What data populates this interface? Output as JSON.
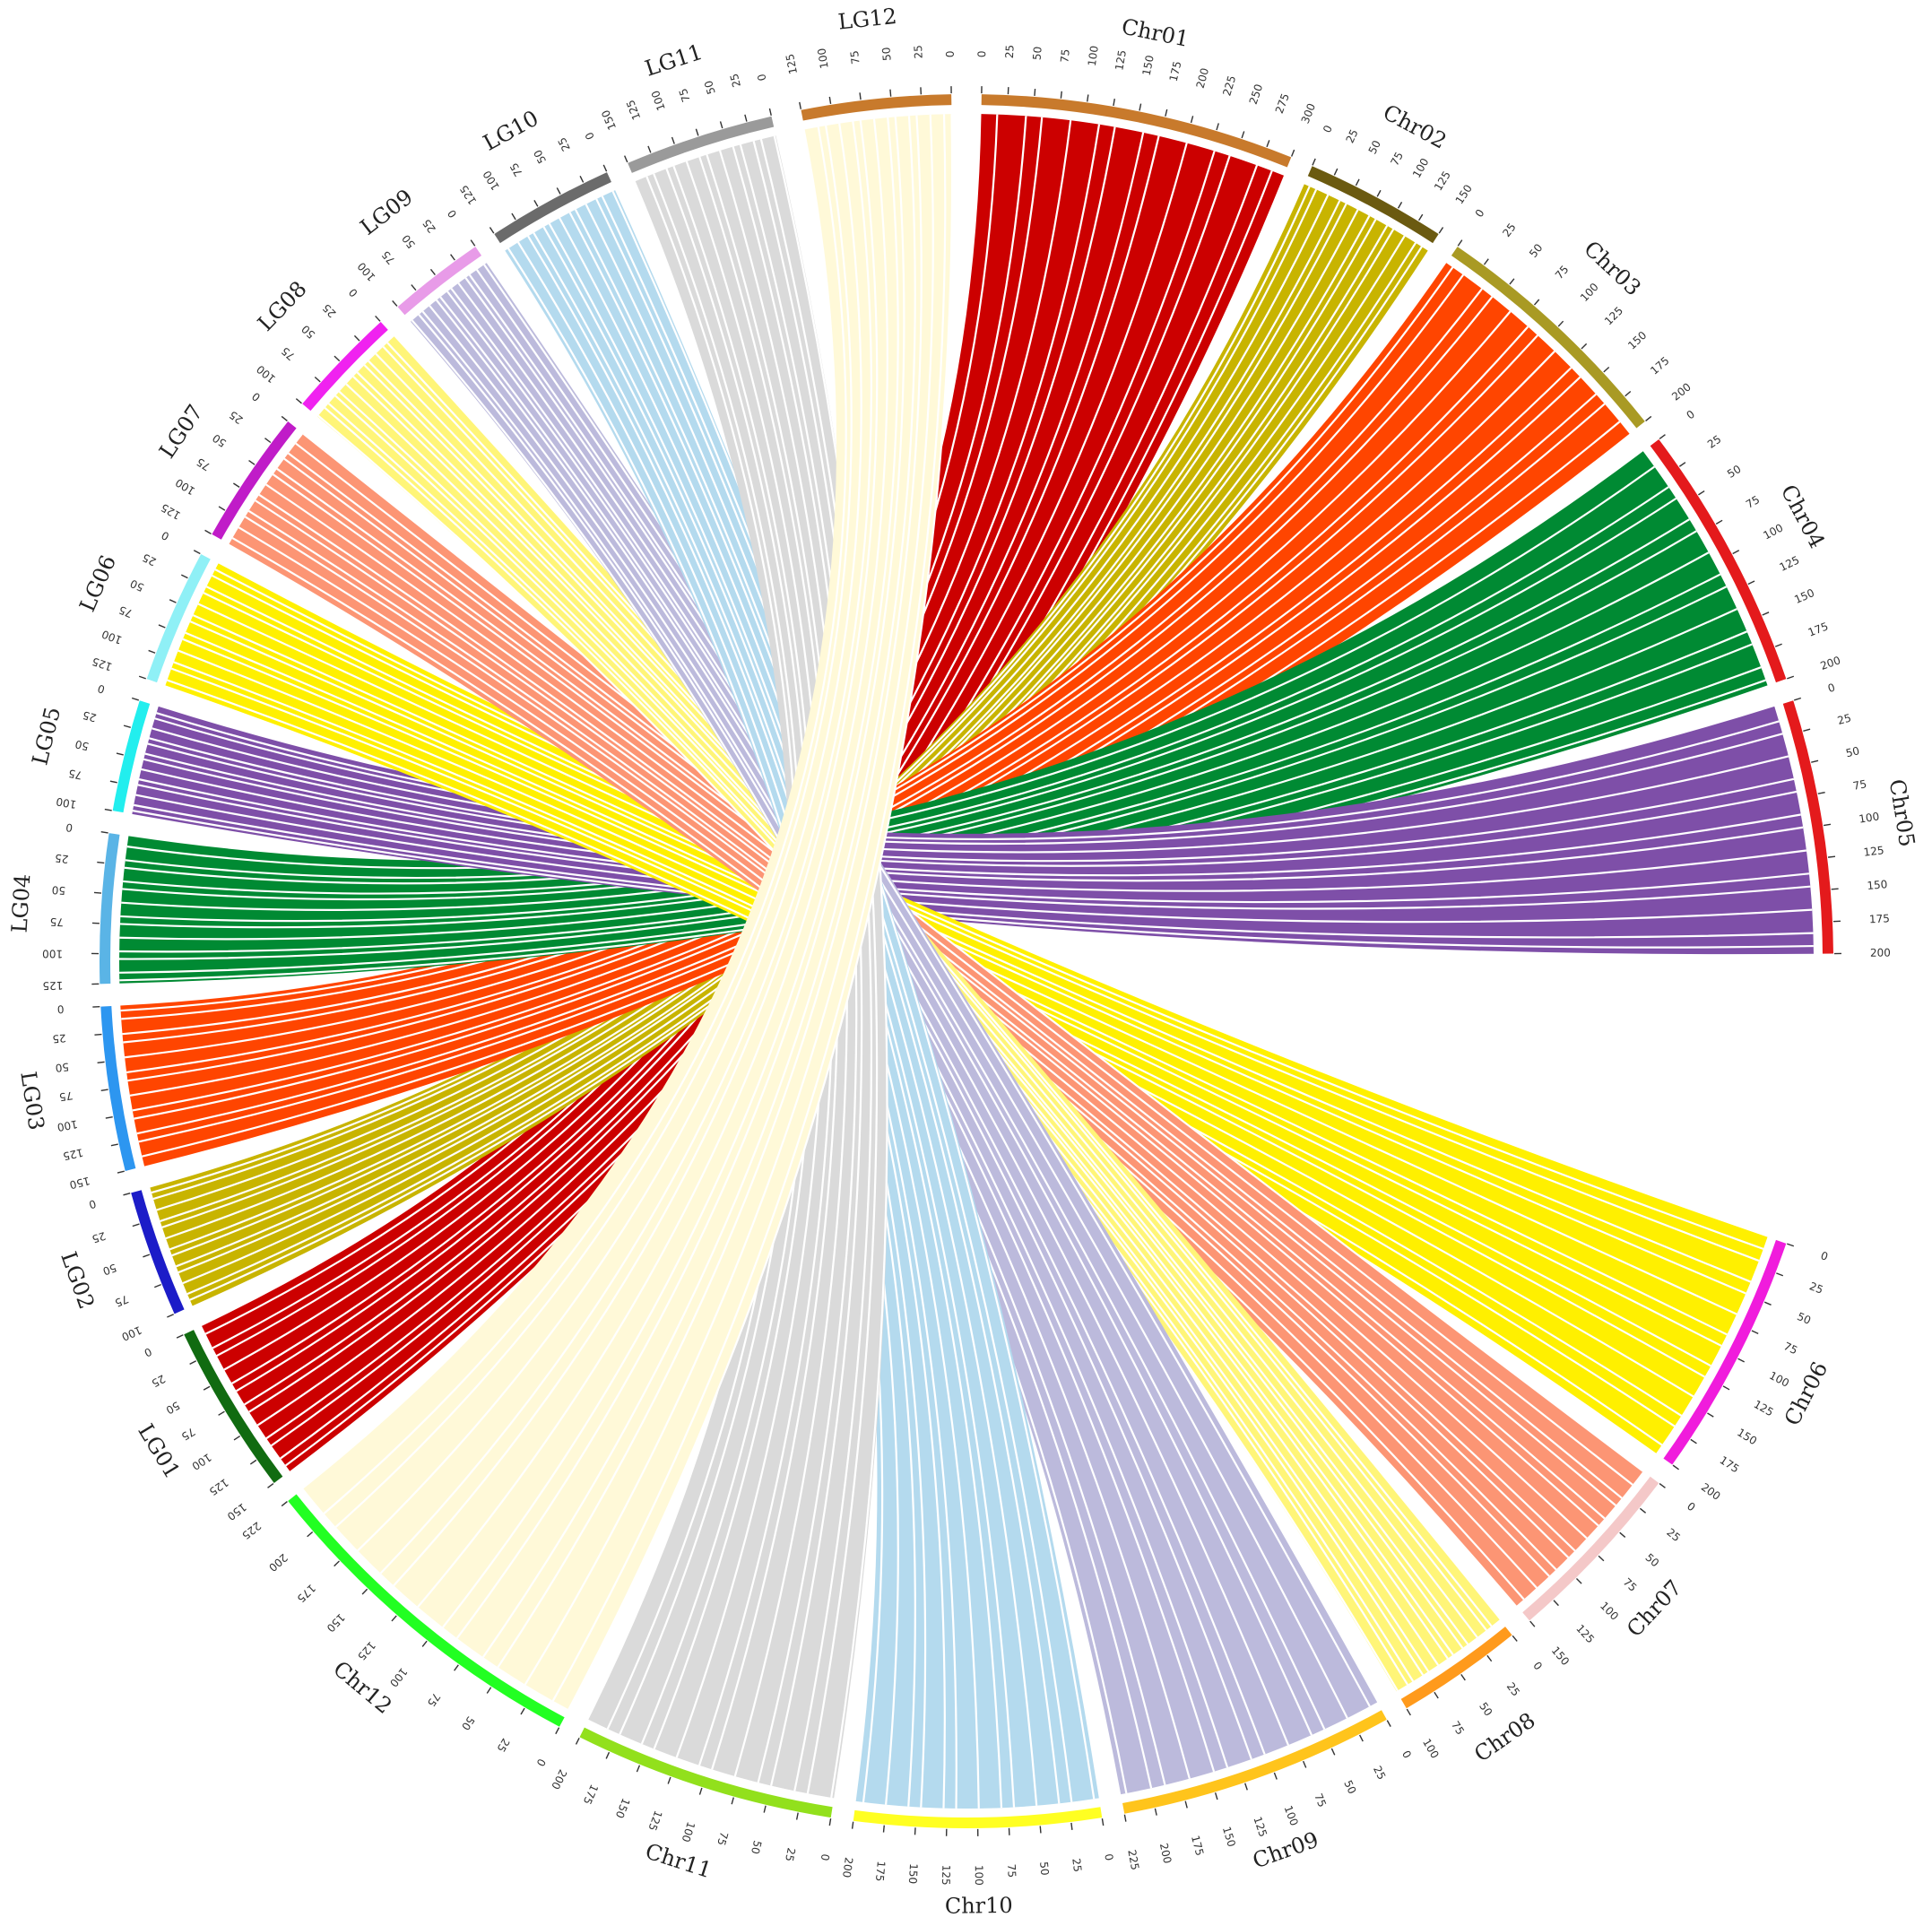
{
  "figure": {
    "type": "circos-synteny",
    "background": "#ffffff"
  },
  "chromosomes": [
    {
      "id": "Chr01",
      "label": "Chr01",
      "length": 300,
      "tick_step": 25,
      "color": "#c87a2c"
    },
    {
      "id": "Chr02",
      "label": "Chr02",
      "length": 150,
      "tick_step": 25,
      "color": "#6b5a10"
    },
    {
      "id": "Chr03",
      "label": "Chr03",
      "length": 200,
      "tick_step": 25,
      "color": "#a99a24"
    },
    {
      "id": "Chr04",
      "label": "Chr04",
      "length": 200,
      "tick_step": 25,
      "color": "#e41a1c"
    },
    {
      "id": "Chr05",
      "label": "Chr05",
      "length": 200,
      "tick_step": 25,
      "color": "#e41a1c"
    },
    {
      "id": "Chr06",
      "label": "Chr06",
      "length": 200,
      "tick_step": 25,
      "color": "#f01cdc"
    },
    {
      "id": "Chr07",
      "label": "Chr07",
      "length": 150,
      "tick_step": 25,
      "color": "#f4c8c8"
    },
    {
      "id": "Chr08",
      "label": "Chr08",
      "length": 100,
      "tick_step": 25,
      "color": "#ff9a1c"
    },
    {
      "id": "Chr09",
      "label": "Chr09",
      "length": 225,
      "tick_step": 25,
      "color": "#ffc41c"
    },
    {
      "id": "Chr10",
      "label": "Chr10",
      "length": 200,
      "tick_step": 25,
      "color": "#ffff22"
    },
    {
      "id": "Chr11",
      "label": "Chr11",
      "length": 200,
      "tick_step": 25,
      "color": "#92e01c"
    },
    {
      "id": "Chr12",
      "label": "Chr12",
      "length": 225,
      "tick_step": 25,
      "color": "#22ff22"
    },
    {
      "id": "LG01",
      "label": "LG01",
      "length": 150,
      "tick_step": 25,
      "color": "#116b11"
    },
    {
      "id": "LG02",
      "label": "LG02",
      "length": 100,
      "tick_step": 25,
      "color": "#1c1cc8"
    },
    {
      "id": "LG03",
      "label": "LG03",
      "length": 150,
      "tick_step": 25,
      "color": "#2d96f0"
    },
    {
      "id": "LG04",
      "label": "LG04",
      "length": 125,
      "tick_step": 25,
      "color": "#5ab4e6"
    },
    {
      "id": "LG05",
      "label": "LG05",
      "length": 100,
      "tick_step": 25,
      "color": "#22eeee"
    },
    {
      "id": "LG06",
      "label": "LG06",
      "length": 125,
      "tick_step": 25,
      "color": "#8ff0f6"
    },
    {
      "id": "LG07",
      "label": "LG07",
      "length": 125,
      "tick_step": 25,
      "color": "#c01cc8"
    },
    {
      "id": "LG08",
      "label": "LG08",
      "length": 100,
      "tick_step": 25,
      "color": "#f022f0"
    },
    {
      "id": "LG09",
      "label": "LG09",
      "length": 100,
      "tick_step": 25,
      "color": "#e89be8"
    },
    {
      "id": "LG10",
      "label": "LG10",
      "length": 125,
      "tick_step": 25,
      "color": "#6b6b6b"
    },
    {
      "id": "LG11",
      "label": "LG11",
      "length": 150,
      "tick_step": 25,
      "color": "#9a9a9a"
    },
    {
      "id": "LG12",
      "label": "LG12",
      "length": 125,
      "tick_step": 25,
      "color": "#c87a2c"
    }
  ],
  "links": [
    {
      "source": "Chr01",
      "target": "LG01",
      "color": "#cc0000"
    },
    {
      "source": "Chr02",
      "target": "LG02",
      "color": "#c8b400"
    },
    {
      "source": "Chr03",
      "target": "LG03",
      "color": "#ff4500"
    },
    {
      "source": "Chr04",
      "target": "LG04",
      "color": "#008a33"
    },
    {
      "source": "Chr05",
      "target": "LG05",
      "color": "#7e4fa8"
    },
    {
      "source": "Chr06",
      "target": "LG06",
      "color": "#fff000"
    },
    {
      "source": "Chr07",
      "target": "LG07",
      "color": "#fc9574"
    },
    {
      "source": "Chr08",
      "target": "LG08",
      "color": "#fff578"
    },
    {
      "source": "Chr09",
      "target": "LG09",
      "color": "#bcbadc"
    },
    {
      "source": "Chr10",
      "target": "LG10",
      "color": "#b4daee"
    },
    {
      "source": "Chr11",
      "target": "LG11",
      "color": "#dadada"
    },
    {
      "source": "Chr12",
      "target": "LG12",
      "color": "#fff9d8"
    }
  ]
}
